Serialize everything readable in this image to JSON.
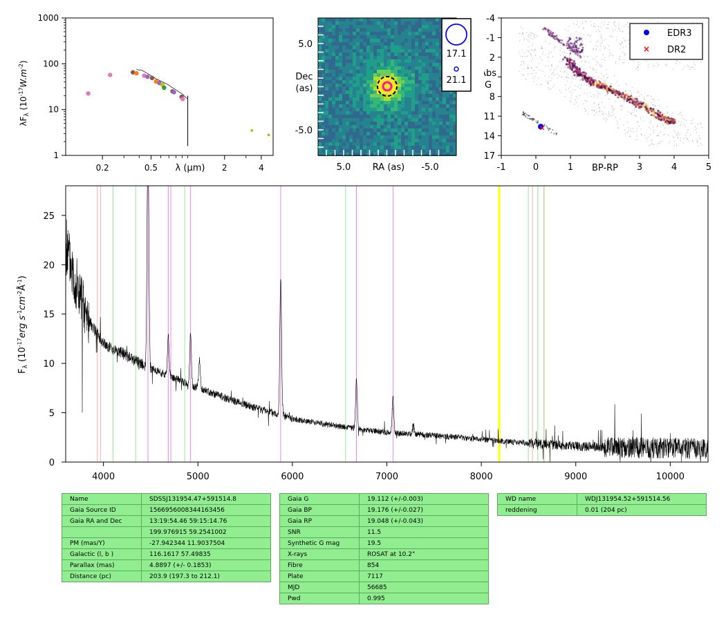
{
  "chart_data": [
    {
      "type": "scatter",
      "ylabel": "λF_λ (10^-17 W.m^-2)",
      "xlabel": "λ (μm)",
      "xscale": "log",
      "yscale": "log",
      "xlim": [
        0.1,
        5.0
      ],
      "ylim": [
        1,
        1000
      ],
      "x_tick_labels": [
        "0.2",
        "0.5",
        "2",
        "4"
      ],
      "y_tick_labels": [
        "1",
        "10",
        "100",
        "1000"
      ],
      "points": [
        {
          "x": 0.153,
          "y": 22.5,
          "color": "#e377c2"
        },
        {
          "x": 0.231,
          "y": 57,
          "color": "#e377c2"
        },
        {
          "x": 0.355,
          "y": 65,
          "color": "#8c564b"
        },
        {
          "x": 0.38,
          "y": 62,
          "color": "#ff7f0e"
        },
        {
          "x": 0.44,
          "y": 55,
          "color": "#e377c2"
        },
        {
          "x": 0.468,
          "y": 52,
          "color": "#9467bd"
        },
        {
          "x": 0.51,
          "y": 49,
          "color": "#8c564b"
        },
        {
          "x": 0.55,
          "y": 41,
          "color": "#ff7f0e"
        },
        {
          "x": 0.585,
          "y": 38,
          "color": "#9467bd"
        },
        {
          "x": 0.62,
          "y": 35,
          "color": "#bcbd22"
        },
        {
          "x": 0.64,
          "y": 30,
          "color": "#2ca02c"
        },
        {
          "x": 0.75,
          "y": 25,
          "color": "#8c564b"
        },
        {
          "x": 0.77,
          "y": 24,
          "color": "#9467bd"
        },
        {
          "x": 0.89,
          "y": 19,
          "color": "#8c564b"
        },
        {
          "x": 0.91,
          "y": 17,
          "color": "#e377c2"
        },
        {
          "x": 3.35,
          "y": 3.5,
          "color": "#bcbd22"
        },
        {
          "x": 4.6,
          "y": 2.8,
          "color": "#bcbd22"
        }
      ],
      "spectrum": {
        "x": [
          0.38,
          0.42,
          0.46,
          0.5,
          0.55,
          0.6,
          0.65,
          0.7,
          0.75,
          0.8,
          0.85,
          0.9,
          0.95,
          1.0
        ],
        "y": [
          75,
          72,
          63,
          55,
          47,
          42,
          38,
          34,
          30,
          27,
          24,
          22,
          19,
          17
        ]
      }
    },
    {
      "type": "image",
      "xlabel": "RA (as)",
      "ylabel": "Dec\n(as)",
      "x_tick_labels": [
        "5.0",
        "-5.0"
      ],
      "y_tick_labels": [
        "5.0",
        "-5.0"
      ],
      "legend": [
        {
          "label": "17.1",
          "color": "#0000ff"
        },
        {
          "label": "21.1",
          "color": "#0000ff"
        }
      ]
    },
    {
      "type": "scatter",
      "xlabel": "BP-RP",
      "ylabel": "Abs\nG",
      "xlim": [
        -1,
        5
      ],
      "ylim": [
        17,
        -4
      ],
      "x_tick_labels": [
        "-1",
        "0",
        "1",
        "3",
        "4",
        "5"
      ],
      "y_tick_labels": [
        "-4",
        "-1",
        "2",
        "5",
        "8",
        "11",
        "14",
        "17"
      ],
      "legend_position": "top-right",
      "series": [
        {
          "name": "EDR3",
          "color": "#0000ff",
          "marker": "circle",
          "points": [
            {
              "x": 0.14,
              "y": 12.6
            }
          ]
        },
        {
          "name": "DR2",
          "color": "#ff0000",
          "marker": "x",
          "points": [
            {
              "x": 0.16,
              "y": 12.7
            }
          ]
        }
      ]
    },
    {
      "type": "line",
      "ylabel": "F_λ (10^-17 erg s^-1 cm^-2 Å^-1)",
      "xlim": [
        3600,
        10400
      ],
      "ylim": [
        0,
        28
      ],
      "x_ticks": [
        4000,
        5000,
        6000,
        7000,
        8000,
        9000,
        10000
      ],
      "y_ticks": [
        0,
        5,
        10,
        15,
        20,
        25
      ],
      "continuum": [
        [
          3600,
          22
        ],
        [
          3800,
          15
        ],
        [
          4000,
          12
        ],
        [
          4200,
          11
        ],
        [
          4500,
          9.5
        ],
        [
          5000,
          7.5
        ],
        [
          5500,
          5.8
        ],
        [
          6000,
          4.4
        ],
        [
          6500,
          3.6
        ],
        [
          7000,
          3.0
        ],
        [
          7500,
          2.7
        ],
        [
          8000,
          2.3
        ],
        [
          8500,
          1.9
        ],
        [
          9000,
          1.6
        ],
        [
          9500,
          1.5
        ],
        [
          10000,
          1.4
        ],
        [
          10400,
          1.3
        ]
      ],
      "emission_lines": [
        {
          "x": 4471,
          "height": 25
        },
        {
          "x": 4686,
          "height": 4
        },
        {
          "x": 4922,
          "height": 5
        },
        {
          "x": 5016,
          "height": 3
        },
        {
          "x": 5876,
          "height": 14
        },
        {
          "x": 6678,
          "height": 5
        },
        {
          "x": 7065,
          "height": 3.5
        },
        {
          "x": 7281,
          "height": 1
        }
      ],
      "vertical_lines": [
        {
          "x": 3934,
          "color": "#ffb0b0"
        },
        {
          "x": 3969,
          "color": "#ffb0b0"
        },
        {
          "x": 4102,
          "color": "#90ee90"
        },
        {
          "x": 4341,
          "color": "#90ee90"
        },
        {
          "x": 4471,
          "color": "#ee82ee"
        },
        {
          "x": 4686,
          "color": "#ee82ee"
        },
        {
          "x": 4713,
          "color": "#ee82ee"
        },
        {
          "x": 4861,
          "color": "#90ee90"
        },
        {
          "x": 4922,
          "color": "#ee82ee"
        },
        {
          "x": 5876,
          "color": "#ee82ee"
        },
        {
          "x": 6563,
          "color": "#90ee90"
        },
        {
          "x": 6678,
          "color": "#ee82ee"
        },
        {
          "x": 7065,
          "color": "#ee82ee"
        },
        {
          "x": 8183,
          "color": "#ffff00"
        },
        {
          "x": 8195,
          "color": "#ffff00"
        },
        {
          "x": 8498,
          "color": "#90ee90"
        },
        {
          "x": 8542,
          "color": "#ffb0b0"
        },
        {
          "x": 8598,
          "color": "#90ee90"
        },
        {
          "x": 8662,
          "color": "#ffb0b0"
        },
        {
          "x": 8665,
          "color": "#90ee90"
        }
      ]
    }
  ],
  "tables": {
    "left": [
      [
        "Name",
        "SDSSJ131954.47+591514.8"
      ],
      [
        "Gaia Source ID",
        "1566956008344163456"
      ],
      [
        "Gaia RA and Dec",
        "13:19:54.46    59:15:14.76"
      ],
      [
        "",
        "199.976915    59.2541002"
      ],
      [
        "PM (mas/Y)",
        "-27.942344    11.9037504"
      ],
      [
        "Galactic (l, b )",
        "116.1617    57.49835"
      ],
      [
        "Parallax (mas)",
        "4.8897 (+/- 0.1853)"
      ],
      [
        "Distance (pc)",
        "203.9 (197.3 to 212.1)"
      ]
    ],
    "middle": [
      [
        "Gaia G",
        "19.112 (+/-0.003)"
      ],
      [
        "Gaia BP",
        "19.176 (+/-0.027)"
      ],
      [
        "Gaia RP",
        "19.048 (+/-0.043)"
      ],
      [
        "SNR",
        "11.5"
      ],
      [
        "Synthetic G mag",
        "19.5"
      ],
      [
        "X-rays",
        "ROSAT at 10.2\""
      ],
      [
        "Fibre",
        "854"
      ],
      [
        "Plate",
        "7117"
      ],
      [
        "MJD",
        "56685"
      ],
      [
        "Pwd",
        "0.995"
      ]
    ],
    "right": [
      [
        "WD name",
        "WDJ131954.52+591514.56"
      ],
      [
        "reddening",
        "0.01 (204 pc)"
      ]
    ]
  }
}
